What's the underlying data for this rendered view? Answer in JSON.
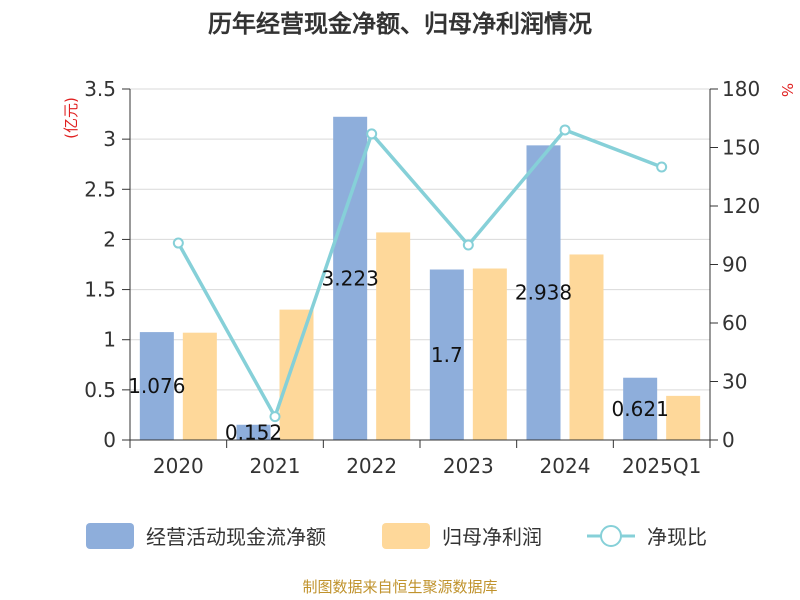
{
  "title": "历年经营现金净额、归母净利润情况",
  "source": "制图数据来自恒生聚源数据库",
  "chart_data": {
    "type": "bar",
    "categories": [
      "2020",
      "2021",
      "2022",
      "2023",
      "2024",
      "2025Q1"
    ],
    "series": [
      {
        "name": "经营活动现金流净额",
        "axis": "left",
        "kind": "bar",
        "color": "#8eaedb",
        "values": [
          1.076,
          0.152,
          3.223,
          1.7,
          2.938,
          0.621
        ],
        "labels": [
          "1.076",
          "0.152",
          "3.223",
          "1.7",
          "2.938",
          "0.621"
        ]
      },
      {
        "name": "归母净利润",
        "axis": "left",
        "kind": "bar",
        "color": "#fed89a",
        "values": [
          1.07,
          1.3,
          2.07,
          1.71,
          1.85,
          0.44
        ]
      },
      {
        "name": "净现比",
        "axis": "right",
        "kind": "line",
        "color": "#86d0d8",
        "values": [
          101,
          12,
          157,
          100,
          159,
          140
        ]
      }
    ],
    "y_left": {
      "unit": "(亿元)",
      "min": 0,
      "max": 3.5,
      "ticks": [
        "0",
        "0.5",
        "1",
        "1.5",
        "2",
        "2.5",
        "3",
        "3.5"
      ]
    },
    "y_right": {
      "unit": "%",
      "min": 0,
      "max": 180,
      "ticks": [
        "0",
        "30",
        "60",
        "90",
        "120",
        "150",
        "180"
      ]
    },
    "grid": true,
    "legend_position": "bottom"
  }
}
